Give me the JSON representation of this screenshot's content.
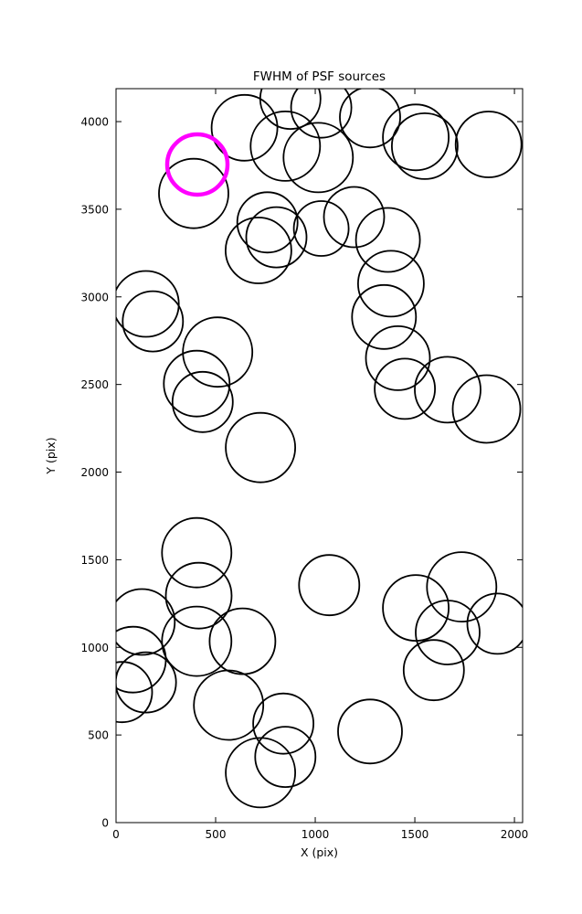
{
  "chart_data": {
    "type": "scatter",
    "title": "FWHM of PSF sources",
    "xlabel": "X (pix)",
    "ylabel": "Y (pix)",
    "xlim": [
      0,
      2041
    ],
    "ylim": [
      0,
      4188
    ],
    "xticks": [
      0,
      500,
      1000,
      1500,
      2000
    ],
    "yticks": [
      0,
      500,
      1000,
      1500,
      2000,
      2500,
      3000,
      3500,
      4000
    ],
    "grid": false,
    "legend": null,
    "marker": "circle-outline",
    "colors": {
      "source_stroke": "#000000",
      "highlight_stroke": "#ff00ff",
      "background": "#ffffff"
    },
    "highlighted_source": {
      "x": 408,
      "y": 3755,
      "r": 33
    },
    "sources": [
      {
        "x": 390,
        "y": 3590,
        "r": 38
      },
      {
        "x": 645,
        "y": 3965,
        "r": 36
      },
      {
        "x": 875,
        "y": 4130,
        "r": 33
      },
      {
        "x": 850,
        "y": 3860,
        "r": 38
      },
      {
        "x": 1015,
        "y": 3795,
        "r": 38
      },
      {
        "x": 1030,
        "y": 4080,
        "r": 33
      },
      {
        "x": 1275,
        "y": 4025,
        "r": 33
      },
      {
        "x": 1505,
        "y": 3910,
        "r": 36
      },
      {
        "x": 1550,
        "y": 3860,
        "r": 36
      },
      {
        "x": 1870,
        "y": 3870,
        "r": 36
      },
      {
        "x": 760,
        "y": 3425,
        "r": 33
      },
      {
        "x": 715,
        "y": 3265,
        "r": 36
      },
      {
        "x": 805,
        "y": 3340,
        "r": 33
      },
      {
        "x": 1030,
        "y": 3390,
        "r": 30
      },
      {
        "x": 1195,
        "y": 3455,
        "r": 33
      },
      {
        "x": 1365,
        "y": 3325,
        "r": 35
      },
      {
        "x": 1380,
        "y": 3075,
        "r": 36
      },
      {
        "x": 150,
        "y": 2960,
        "r": 36
      },
      {
        "x": 185,
        "y": 2860,
        "r": 33
      },
      {
        "x": 510,
        "y": 2685,
        "r": 38
      },
      {
        "x": 1345,
        "y": 2885,
        "r": 35
      },
      {
        "x": 405,
        "y": 2505,
        "r": 36
      },
      {
        "x": 435,
        "y": 2400,
        "r": 33
      },
      {
        "x": 1415,
        "y": 2650,
        "r": 35
      },
      {
        "x": 1450,
        "y": 2475,
        "r": 33
      },
      {
        "x": 1665,
        "y": 2470,
        "r": 36
      },
      {
        "x": 1860,
        "y": 2360,
        "r": 37
      },
      {
        "x": 725,
        "y": 2140,
        "r": 38
      },
      {
        "x": 405,
        "y": 1540,
        "r": 38
      },
      {
        "x": 415,
        "y": 1295,
        "r": 36
      },
      {
        "x": 1070,
        "y": 1355,
        "r": 33
      },
      {
        "x": 1505,
        "y": 1225,
        "r": 36
      },
      {
        "x": 1735,
        "y": 1345,
        "r": 38
      },
      {
        "x": 1665,
        "y": 1085,
        "r": 35
      },
      {
        "x": 1915,
        "y": 1135,
        "r": 33
      },
      {
        "x": 1595,
        "y": 870,
        "r": 33
      },
      {
        "x": 130,
        "y": 1145,
        "r": 36
      },
      {
        "x": 405,
        "y": 1035,
        "r": 38
      },
      {
        "x": 635,
        "y": 1035,
        "r": 36
      },
      {
        "x": 85,
        "y": 930,
        "r": 36
      },
      {
        "x": 150,
        "y": 800,
        "r": 33
      },
      {
        "x": 30,
        "y": 745,
        "r": 33
      },
      {
        "x": 565,
        "y": 670,
        "r": 38
      },
      {
        "x": 840,
        "y": 565,
        "r": 33
      },
      {
        "x": 1275,
        "y": 520,
        "r": 35
      },
      {
        "x": 725,
        "y": 285,
        "r": 38
      },
      {
        "x": 850,
        "y": 375,
        "r": 33
      }
    ]
  }
}
